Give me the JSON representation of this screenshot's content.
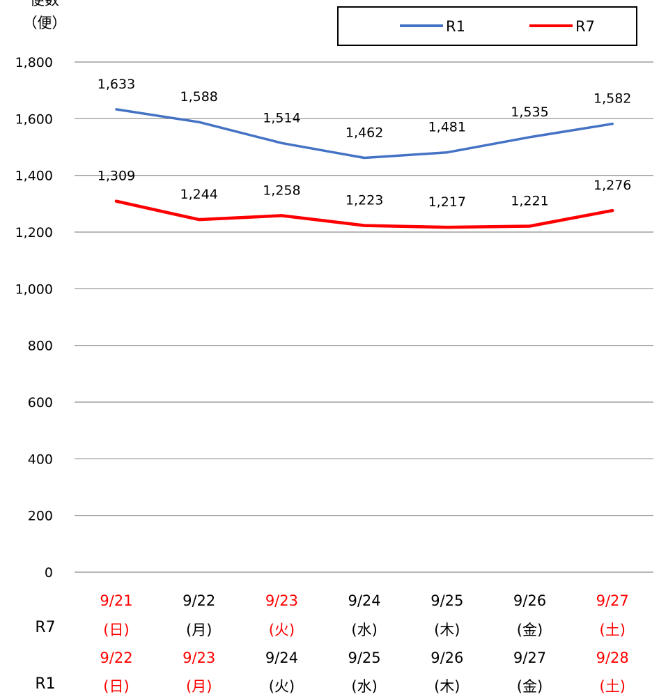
{
  "chart_data": {
    "type": "line",
    "ylabel": [
      "便数",
      "（便）"
    ],
    "ylim": [
      0,
      1800
    ],
    "ytick_step": 200,
    "yticks": [
      "0",
      "200",
      "400",
      "600",
      "800",
      "1,000",
      "1,200",
      "1,400",
      "1,600",
      "1,800"
    ],
    "grid": true,
    "legend_position": "top-right",
    "row_labels": [
      "R7",
      "R1"
    ],
    "categories_r7": [
      {
        "date": "9/21",
        "day": "(日)",
        "holiday": true
      },
      {
        "date": "9/22",
        "day": "(月)",
        "holiday": false
      },
      {
        "date": "9/23",
        "day": "(火)",
        "holiday": true
      },
      {
        "date": "9/24",
        "day": "(水)",
        "holiday": false
      },
      {
        "date": "9/25",
        "day": "(木)",
        "holiday": false
      },
      {
        "date": "9/26",
        "day": "(金)",
        "holiday": false
      },
      {
        "date": "9/27",
        "day": "(土)",
        "holiday": true
      }
    ],
    "categories_r1": [
      {
        "date": "9/22",
        "day": "(日)",
        "holiday": true
      },
      {
        "date": "9/23",
        "day": "(月)",
        "holiday": true
      },
      {
        "date": "9/24",
        "day": "(火)",
        "holiday": false
      },
      {
        "date": "9/25",
        "day": "(水)",
        "holiday": false
      },
      {
        "date": "9/26",
        "day": "(木)",
        "holiday": false
      },
      {
        "date": "9/27",
        "day": "(金)",
        "holiday": false
      },
      {
        "date": "9/28",
        "day": "(土)",
        "holiday": true
      }
    ],
    "series": [
      {
        "name": "R1",
        "color": "#4472C4",
        "values": [
          1633,
          1588,
          1514,
          1462,
          1481,
          1535,
          1582
        ],
        "labels": [
          "1,633",
          "1,588",
          "1,514",
          "1,462",
          "1,481",
          "1,535",
          "1,582"
        ]
      },
      {
        "name": "R7",
        "color": "#FF0000",
        "values": [
          1309,
          1244,
          1258,
          1223,
          1217,
          1221,
          1276
        ],
        "labels": [
          "1,309",
          "1,244",
          "1,258",
          "1,223",
          "1,217",
          "1,221",
          "1,276"
        ]
      }
    ],
    "colors": {
      "holiday": "#FF0000",
      "weekday": "#000000",
      "grid": "#8C8C8C"
    }
  }
}
